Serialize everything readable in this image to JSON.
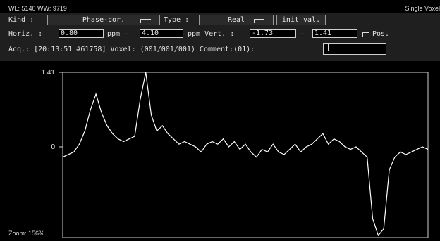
{
  "header": {
    "wl_ww": "WL: 5140 WW: 9719",
    "single_voxel": "Single Voxel"
  },
  "controls": {
    "kind_label": "Kind :",
    "kind_value": "Phase-cor.",
    "type_label": "Type :",
    "type_value": "Real",
    "init_button": "init val.",
    "horiz_label": "Horiz. :",
    "horiz_from": "0.80",
    "ppm_dash": "ppm  –",
    "horiz_to": "4.10",
    "vert_label": "ppm Vert. :",
    "vert_from": "-1.73",
    "dash": "–",
    "vert_to": "1.41",
    "pos_label": "Pos.",
    "acq_line": "Acq.: [20:13:51 #61758] Voxel: (001/001/001) Comment:(01):",
    "comment_value": ""
  },
  "plot": {
    "y_top_label": "1.41",
    "y_zero_label": "0",
    "zoom": "Zoom: 156%"
  },
  "colors": {
    "background": "#000000",
    "panel": "#1f1f1f",
    "trace": "#ffffff"
  },
  "chart_data": {
    "type": "line",
    "title": "",
    "xlabel": "",
    "ylabel": "",
    "xlim": [
      4.1,
      0.8
    ],
    "ylim": [
      -1.73,
      1.41
    ],
    "x": [
      4.1,
      4.05,
      4.0,
      3.95,
      3.9,
      3.85,
      3.8,
      3.75,
      3.7,
      3.65,
      3.6,
      3.55,
      3.5,
      3.45,
      3.4,
      3.35,
      3.3,
      3.25,
      3.2,
      3.15,
      3.1,
      3.05,
      3.0,
      2.95,
      2.9,
      2.85,
      2.8,
      2.75,
      2.7,
      2.65,
      2.6,
      2.55,
      2.5,
      2.45,
      2.4,
      2.35,
      2.3,
      2.25,
      2.2,
      2.15,
      2.1,
      2.05,
      2.0,
      1.95,
      1.9,
      1.85,
      1.8,
      1.75,
      1.7,
      1.65,
      1.6,
      1.55,
      1.5,
      1.45,
      1.4,
      1.35,
      1.3,
      1.25,
      1.2,
      1.15,
      1.1,
      1.05,
      1.0,
      0.95,
      0.9,
      0.85,
      0.8
    ],
    "y": [
      -0.2,
      -0.15,
      -0.1,
      0.05,
      0.3,
      0.7,
      1.0,
      0.65,
      0.4,
      0.25,
      0.15,
      0.1,
      0.15,
      0.2,
      0.9,
      1.41,
      0.6,
      0.3,
      0.4,
      0.25,
      0.15,
      0.05,
      0.1,
      0.05,
      0.0,
      -0.1,
      0.05,
      0.1,
      0.05,
      0.15,
      0.0,
      0.1,
      -0.05,
      0.05,
      -0.1,
      -0.2,
      -0.05,
      -0.1,
      0.05,
      -0.1,
      -0.15,
      -0.05,
      0.05,
      -0.1,
      0.0,
      0.05,
      0.15,
      0.25,
      0.05,
      0.15,
      0.1,
      0.0,
      -0.05,
      0.0,
      -0.1,
      -0.2,
      -1.4,
      -1.73,
      -1.6,
      -0.45,
      -0.2,
      -0.1,
      -0.15,
      -0.1,
      -0.05,
      0.0,
      -0.05
    ]
  }
}
